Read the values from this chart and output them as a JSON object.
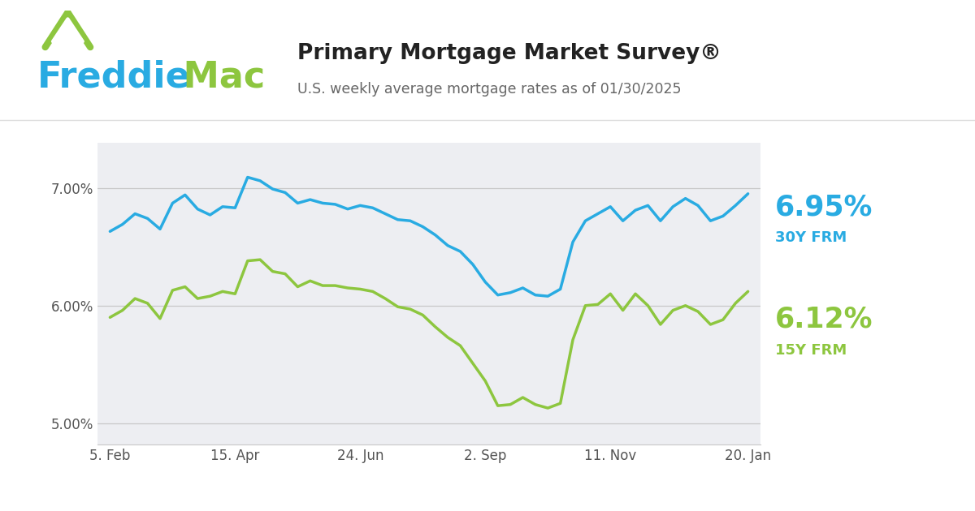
{
  "title": "Primary Mortgage Market Survey®",
  "subtitle": "U.S. weekly average mortgage rates as of 01/30/2025",
  "line30_color": "#29ABE2",
  "line15_color": "#8DC63F",
  "label30_value": "6.95%",
  "label30_name": "30Y FRM",
  "label15_value": "6.12%",
  "label15_name": "15Y FRM",
  "background_plot": "#EDEEF2",
  "background_outer": "#FFFFFF",
  "grid_color": "#C8C8C8",
  "yticks": [
    5.0,
    6.0,
    7.0
  ],
  "ytick_labels": [
    "5.00%",
    "6.00%",
    "7.00%"
  ],
  "xtick_labels": [
    "5. Feb",
    "15. Apr",
    "24. Jun",
    "2. Sep",
    "11. Nov",
    "20. Jan"
  ],
  "xtick_positions": [
    0,
    10,
    20,
    30,
    40,
    51
  ],
  "xlim_min": -1,
  "xlim_max": 52,
  "ylim_min": 4.82,
  "ylim_max": 7.38,
  "rate_30y": [
    6.63,
    6.69,
    6.78,
    6.74,
    6.65,
    6.87,
    6.94,
    6.82,
    6.77,
    6.84,
    6.83,
    7.09,
    7.06,
    6.99,
    6.96,
    6.87,
    6.9,
    6.87,
    6.86,
    6.82,
    6.85,
    6.83,
    6.78,
    6.73,
    6.72,
    6.67,
    6.6,
    6.51,
    6.46,
    6.35,
    6.2,
    6.09,
    6.11,
    6.15,
    6.09,
    6.08,
    6.14,
    6.54,
    6.72,
    6.78,
    6.84,
    6.72,
    6.81,
    6.85,
    6.72,
    6.84,
    6.91,
    6.85,
    6.72,
    6.76,
    6.85,
    6.95
  ],
  "rate_15y": [
    5.9,
    5.96,
    6.06,
    6.02,
    5.89,
    6.13,
    6.16,
    6.06,
    6.08,
    6.12,
    6.1,
    6.38,
    6.39,
    6.29,
    6.27,
    6.16,
    6.21,
    6.17,
    6.17,
    6.15,
    6.14,
    6.12,
    6.06,
    5.99,
    5.97,
    5.92,
    5.82,
    5.73,
    5.66,
    5.51,
    5.36,
    5.15,
    5.16,
    5.22,
    5.16,
    5.13,
    5.17,
    5.71,
    6.0,
    6.01,
    6.1,
    5.96,
    6.1,
    6.0,
    5.84,
    5.96,
    6.0,
    5.95,
    5.84,
    5.88,
    6.02,
    6.12
  ],
  "title_color": "#222222",
  "subtitle_color": "#666666",
  "tick_color": "#555555",
  "logo_blue": "#29ABE2",
  "logo_green": "#8DC63F",
  "divider_color": "#DDDDDD"
}
